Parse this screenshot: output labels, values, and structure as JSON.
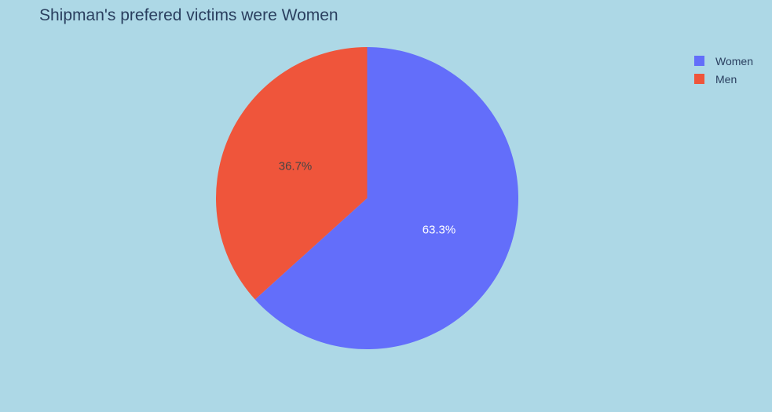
{
  "chart_data": {
    "type": "pie",
    "title": "Shipman's prefered victims were Women",
    "categories": [
      "Women",
      "Men"
    ],
    "values": [
      63.3,
      36.7
    ],
    "slice_labels": [
      "63.3%",
      "36.7%"
    ],
    "colors": [
      "#636efa",
      "#ef553b"
    ],
    "label_colors": [
      "#ffffff",
      "#444444"
    ],
    "legend_position": "top-right",
    "direction": "clockwise",
    "start": "top"
  },
  "page": {
    "background": "#add8e6"
  }
}
